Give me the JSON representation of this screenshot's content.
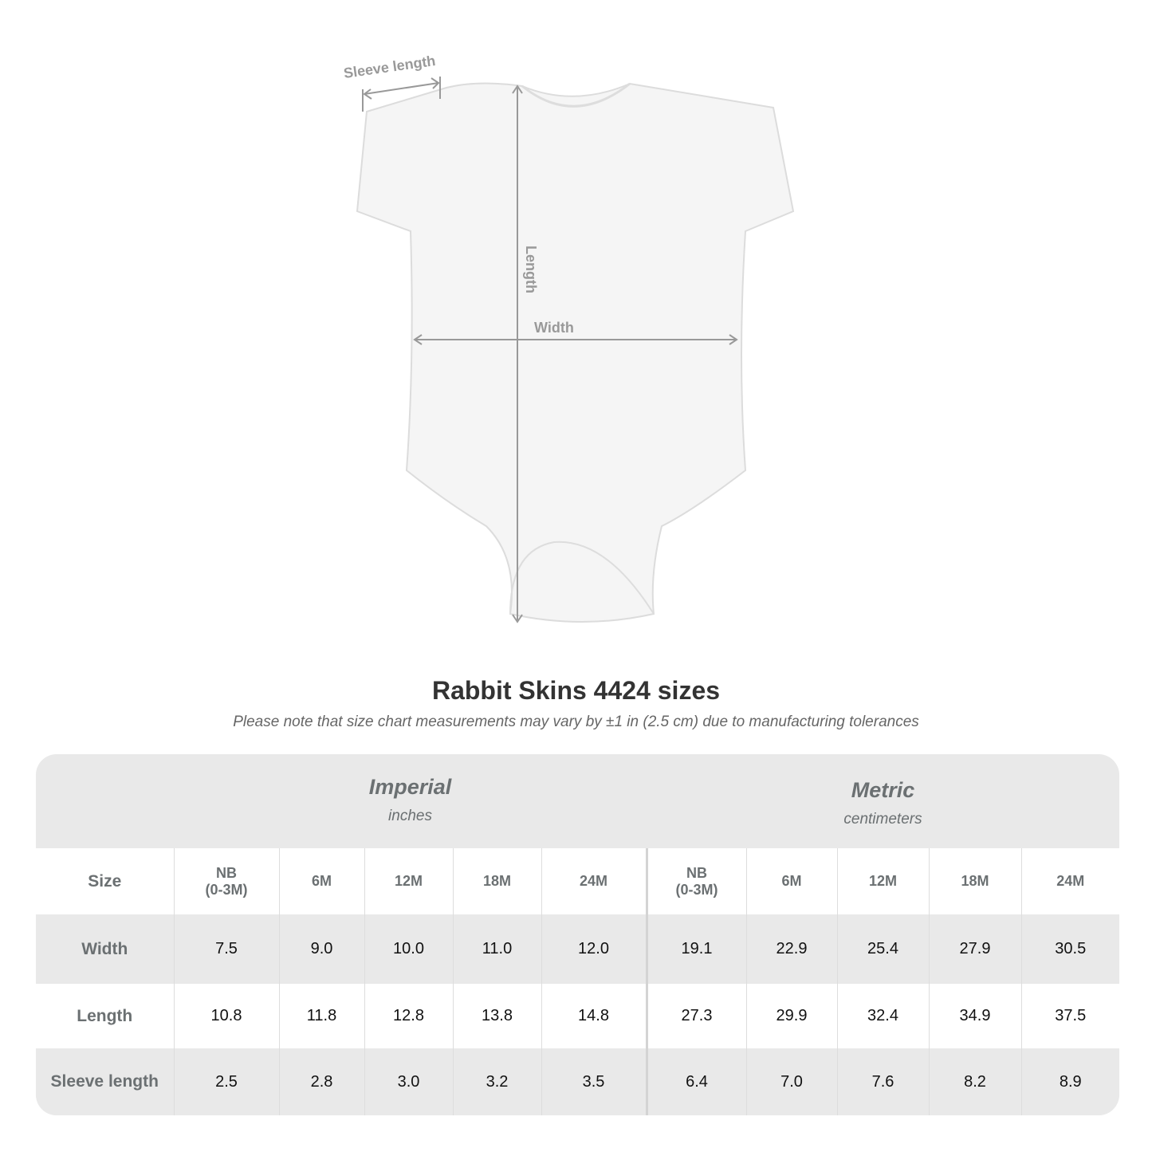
{
  "diagram": {
    "sleeve_label": "Sleeve length",
    "length_label": "Length",
    "width_label": "Width"
  },
  "title": "Rabbit Skins 4424 sizes",
  "subtitle": "Please note that size chart measurements may vary by ±1 in (2.5 cm) due to manufacturing tolerances",
  "table": {
    "imperial": {
      "name": "Imperial",
      "unit": "inches"
    },
    "metric": {
      "name": "Metric",
      "unit": "centimeters"
    },
    "size_label": "Size",
    "imperial_sizes": [
      "NB\n(0-3M)",
      "6M",
      "12M",
      "18M",
      "24M"
    ],
    "metric_sizes": [
      "NB\n(0-3M)",
      "6M",
      "12M",
      "18M",
      "24M"
    ],
    "rows": [
      {
        "label": "Width",
        "imperial": [
          "7.5",
          "9.0",
          "10.0",
          "11.0",
          "12.0"
        ],
        "metric": [
          "19.1",
          "22.9",
          "25.4",
          "27.9",
          "30.5"
        ]
      },
      {
        "label": "Length",
        "imperial": [
          "10.8",
          "11.8",
          "12.8",
          "13.8",
          "14.8"
        ],
        "metric": [
          "27.3",
          "29.9",
          "32.4",
          "34.9",
          "37.5"
        ]
      },
      {
        "label": "Sleeve length",
        "imperial": [
          "2.5",
          "2.8",
          "3.0",
          "3.2",
          "3.5"
        ],
        "metric": [
          "6.4",
          "7.0",
          "7.6",
          "8.2",
          "8.9"
        ]
      }
    ]
  }
}
